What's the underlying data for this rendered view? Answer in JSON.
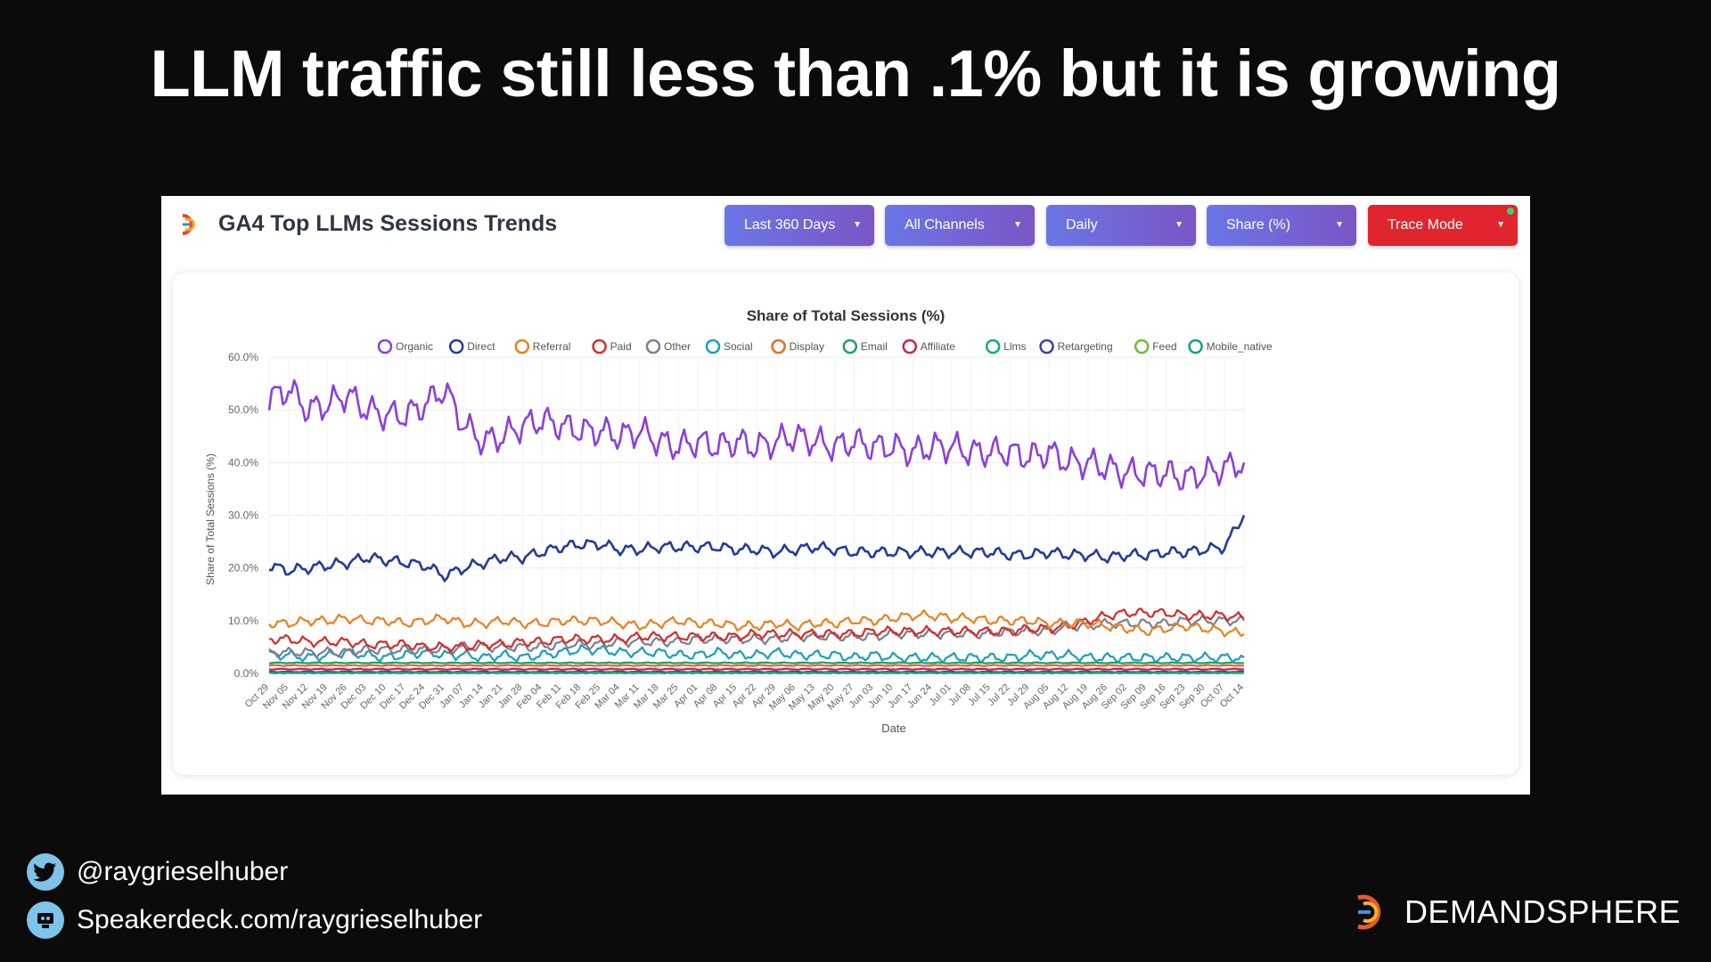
{
  "slide": {
    "title": "LLM traffic still less than .1% but it is growing"
  },
  "panel": {
    "title": "GA4 Top LLMs Sessions Trends",
    "dropdowns": [
      {
        "label": "Last 360 Days",
        "style": "purple"
      },
      {
        "label": "All Channels",
        "style": "purple"
      },
      {
        "label": "Daily",
        "style": "purple"
      },
      {
        "label": "Share (%)",
        "style": "purple"
      },
      {
        "label": "Trace Mode",
        "style": "red"
      }
    ],
    "caret": "▼"
  },
  "chart_data": {
    "type": "line",
    "title": "Share of Total Sessions (%)",
    "xlabel": "Date",
    "ylabel": "Share of Total Sessions (%)",
    "ylim": [
      0,
      60
    ],
    "yticks": [
      "0.0%",
      "10.0%",
      "20.0%",
      "30.0%",
      "40.0%",
      "50.0%",
      "60.0%"
    ],
    "grid": true,
    "legend_position": "top",
    "x_tick_labels": [
      "Oct 29",
      "Nov 05",
      "Nov 12",
      "Nov 19",
      "Nov 26",
      "Dec 03",
      "Dec 10",
      "Dec 17",
      "Dec 24",
      "Dec 31",
      "Jan 07",
      "Jan 14",
      "Jan 21",
      "Jan 28",
      "Feb 04",
      "Feb 11",
      "Feb 18",
      "Feb 25",
      "Mar 04",
      "Mar 11",
      "Mar 18",
      "Mar 25",
      "Apr 01",
      "Apr 08",
      "Apr 15",
      "Apr 22",
      "Apr 29",
      "May 06",
      "May 13",
      "May 20",
      "May 27",
      "Jun 03",
      "Jun 10",
      "Jun 17",
      "Jun 24",
      "Jul 01",
      "Jul 08",
      "Jul 15",
      "Jul 22",
      "Jul 29",
      "Aug 05",
      "Aug 12",
      "Aug 19",
      "Aug 26",
      "Sep 02",
      "Sep 09",
      "Sep 16",
      "Sep 23",
      "Sep 30",
      "Oct 07",
      "Oct 14"
    ],
    "series": [
      {
        "name": "Organic",
        "color": "#8a3fe0",
        "values": [
          52,
          54,
          50,
          51,
          53,
          50,
          49,
          49,
          51,
          54,
          47,
          44,
          45,
          47,
          48,
          47,
          46,
          46,
          45,
          46,
          44,
          43,
          44,
          43,
          44,
          43,
          44,
          45,
          44,
          43,
          44,
          43,
          43,
          42,
          43,
          43,
          42,
          42,
          42,
          41,
          42,
          40,
          40,
          39,
          38,
          38,
          38,
          37,
          38,
          39,
          40
        ]
      },
      {
        "name": "Direct",
        "color": "#243a9c",
        "values": [
          20.5,
          19.5,
          20,
          20.5,
          21,
          22,
          21.5,
          21,
          20.5,
          18.5,
          20,
          21,
          22,
          22,
          23,
          24,
          24.5,
          24.5,
          23.5,
          23.5,
          24,
          24,
          24,
          24,
          23.5,
          23.5,
          23,
          23.5,
          24,
          23.5,
          23,
          23,
          23,
          23,
          23,
          23,
          23,
          23,
          22.5,
          22.5,
          23,
          22.5,
          22.5,
          22,
          22.5,
          22.5,
          23,
          23,
          23.5,
          24,
          30
        ]
      },
      {
        "name": "Referral",
        "color": "#e8821e",
        "values": [
          9.5,
          9.5,
          10,
          10,
          10.5,
          10,
          10,
          9.5,
          10,
          10.5,
          9.5,
          9.5,
          10,
          9.5,
          9.5,
          10,
          10,
          10,
          9.5,
          9,
          9.5,
          10,
          9.5,
          9.5,
          9,
          9,
          9.5,
          9,
          9.5,
          9.5,
          10,
          10,
          10.5,
          11,
          11,
          10.5,
          10.5,
          10,
          10,
          10,
          9.5,
          9.5,
          9.5,
          9,
          8.5,
          8,
          8.5,
          9,
          8.5,
          8,
          7.5
        ]
      },
      {
        "name": "Paid",
        "color": "#d62c2c",
        "values": [
          6.5,
          6.5,
          6,
          6,
          6,
          5.5,
          5.5,
          5.5,
          5,
          5,
          5,
          5.5,
          5.5,
          6,
          6,
          6.5,
          6.5,
          6.5,
          6.5,
          7,
          7,
          7,
          7,
          7,
          7,
          7.5,
          7.5,
          7.5,
          7.5,
          7.5,
          7.5,
          8,
          8,
          8,
          8,
          8,
          8,
          8,
          8,
          8.5,
          8.5,
          9,
          10,
          11,
          11.5,
          11.5,
          11.5,
          11,
          11,
          11,
          10.5
        ]
      },
      {
        "name": "Other",
        "color": "#7b7f8e",
        "values": [
          4,
          4,
          4,
          4,
          4,
          4.5,
          4.5,
          4.5,
          4.5,
          4.5,
          5,
          5,
          5,
          5,
          5,
          5.5,
          5.5,
          5.5,
          6,
          6,
          6,
          6,
          6.5,
          6.5,
          6.5,
          6.5,
          6.5,
          7,
          7,
          7,
          7,
          7,
          7.5,
          7.5,
          7.5,
          7.5,
          7.5,
          7.5,
          8,
          8,
          8,
          9,
          9,
          9.5,
          9.5,
          9.5,
          9.5,
          10,
          10,
          10,
          10
        ]
      },
      {
        "name": "Social",
        "color": "#1a9fb8",
        "values": [
          3.5,
          3.5,
          3,
          3.5,
          4,
          3.5,
          3,
          3.5,
          4,
          3.5,
          3.5,
          3,
          3.5,
          3,
          3.5,
          4,
          4.5,
          4.5,
          4,
          4,
          4,
          3.5,
          3.5,
          4,
          3.5,
          3.5,
          4,
          3.5,
          3.5,
          3.5,
          3,
          3.5,
          3,
          3,
          3,
          3,
          3,
          3,
          3,
          3.5,
          3.5,
          3.5,
          3,
          3,
          3,
          3,
          3,
          3,
          3,
          3,
          3
        ]
      },
      {
        "name": "Display",
        "color": "#e8682a",
        "values": [
          1.5,
          1.5,
          1.5,
          1.5,
          1.5,
          1.5,
          1.5,
          1.5,
          1.5,
          1.5,
          1.5,
          1.5,
          1.5,
          1.5,
          1.5,
          1.5,
          1.5,
          1.5,
          1.5,
          1.5,
          1.5,
          1.5,
          1.5,
          1.5,
          1.5,
          1.5,
          1.5,
          1.5,
          1.5,
          1.5,
          1.5,
          1.5,
          1.5,
          1.5,
          1.5,
          1.5,
          1.5,
          1.5,
          1.5,
          1.5,
          1.5,
          1.5,
          1.5,
          1.5,
          1.5,
          1.5,
          1.5,
          1.5,
          1.5,
          1.5,
          1.5
        ]
      },
      {
        "name": "Email",
        "color": "#1e9e6a",
        "values": [
          2,
          2,
          2,
          2,
          2,
          2,
          2,
          2,
          2,
          2,
          2,
          2,
          2,
          2,
          2,
          2,
          2,
          2,
          2,
          2,
          2,
          2,
          2,
          2,
          2,
          2,
          2,
          2,
          2,
          2,
          2,
          2,
          2,
          2,
          2,
          2,
          2,
          2,
          2,
          2,
          2,
          2,
          2,
          2,
          2,
          2,
          2,
          2,
          2,
          2,
          2
        ]
      },
      {
        "name": "Affiliate",
        "color": "#c8234d",
        "values": [
          0.8,
          0.8,
          0.8,
          0.8,
          0.8,
          0.8,
          0.8,
          0.8,
          0.8,
          0.8,
          0.8,
          0.8,
          0.8,
          0.8,
          0.8,
          0.8,
          0.8,
          0.8,
          0.8,
          0.8,
          0.8,
          0.8,
          0.8,
          0.8,
          0.8,
          0.8,
          0.8,
          0.8,
          0.8,
          0.8,
          0.8,
          0.8,
          0.8,
          0.8,
          0.8,
          0.8,
          0.8,
          0.8,
          0.8,
          0.8,
          0.8,
          0.8,
          0.8,
          0.8,
          0.8,
          0.8,
          0.8,
          0.8,
          0.8,
          0.8,
          0.8
        ]
      },
      {
        "name": "Llms",
        "color": "#18a87a",
        "values": [
          0.1,
          0.1,
          0.1,
          0.1,
          0.1,
          0.1,
          0.1,
          0.1,
          0.1,
          0.1,
          0.1,
          0.1,
          0.1,
          0.1,
          0.1,
          0.1,
          0.1,
          0.1,
          0.1,
          0.1,
          0.1,
          0.1,
          0.1,
          0.1,
          0.1,
          0.1,
          0.1,
          0.1,
          0.1,
          0.1,
          0.1,
          0.1,
          0.1,
          0.1,
          0.1,
          0.1,
          0.1,
          0.1,
          0.1,
          0.1,
          0.1,
          0.1,
          0.1,
          0.1,
          0.1,
          0.1,
          0.1,
          0.1,
          0.1,
          0.1,
          0.1
        ]
      },
      {
        "name": "Retargeting",
        "color": "#3a40a8",
        "values": [
          0.3,
          0.3,
          0.3,
          0.3,
          0.3,
          0.3,
          0.3,
          0.3,
          0.3,
          0.3,
          0.3,
          0.3,
          0.3,
          0.3,
          0.3,
          0.3,
          0.3,
          0.3,
          0.3,
          0.3,
          0.3,
          0.3,
          0.3,
          0.3,
          0.3,
          0.3,
          0.3,
          0.3,
          0.3,
          0.3,
          0.3,
          0.3,
          0.3,
          0.3,
          0.3,
          0.3,
          0.3,
          0.3,
          0.3,
          0.3,
          0.3,
          0.3,
          0.3,
          0.3,
          0.3,
          0.3,
          0.3,
          0.3,
          0.3,
          0.3,
          0.3
        ]
      },
      {
        "name": "Feed",
        "color": "#6abf2e",
        "values": [
          0.2,
          0.2,
          0.2,
          0.2,
          0.2,
          0.2,
          0.2,
          0.2,
          0.2,
          0.2,
          0.2,
          0.2,
          0.2,
          0.2,
          0.2,
          0.2,
          0.2,
          0.2,
          0.2,
          0.2,
          0.2,
          0.2,
          0.2,
          0.2,
          0.2,
          0.2,
          0.2,
          0.2,
          0.2,
          0.2,
          0.2,
          0.2,
          0.2,
          0.2,
          0.2,
          0.2,
          0.2,
          0.2,
          0.2,
          0.2,
          0.2,
          0.2,
          0.2,
          0.2,
          0.2,
          0.2,
          0.2,
          0.2,
          0.2,
          0.2,
          0.2
        ]
      },
      {
        "name": "Mobile_native",
        "color": "#149e8c",
        "values": [
          0.1,
          0.1,
          0.1,
          0.1,
          0.1,
          0.1,
          0.1,
          0.1,
          0.1,
          0.1,
          0.1,
          0.1,
          0.1,
          0.1,
          0.1,
          0.1,
          0.1,
          0.1,
          0.1,
          0.1,
          0.1,
          0.1,
          0.1,
          0.1,
          0.1,
          0.1,
          0.1,
          0.1,
          0.1,
          0.1,
          0.1,
          0.1,
          0.1,
          0.1,
          0.1,
          0.1,
          0.1,
          0.1,
          0.1,
          0.1,
          0.1,
          0.1,
          0.1,
          0.1,
          0.1,
          0.1,
          0.1,
          0.1,
          0.1,
          0.1,
          0.1
        ]
      }
    ]
  },
  "footer": {
    "twitter_icon": "twitter-bird-icon",
    "twitter_handle": "@raygrieselhuber",
    "speakerdeck_icon": "speakerdeck-icon",
    "speakerdeck_url": "Speakerdeck.com/raygrieselhuber",
    "brand_logo": "demandsphere-logo",
    "brand_name": "DEMANDSPHERE"
  },
  "colors": {
    "background": "#0b0b0b",
    "panel": "#ffffff",
    "dropdown_purple": "#6f6ae0",
    "dropdown_red": "#e0252e"
  }
}
